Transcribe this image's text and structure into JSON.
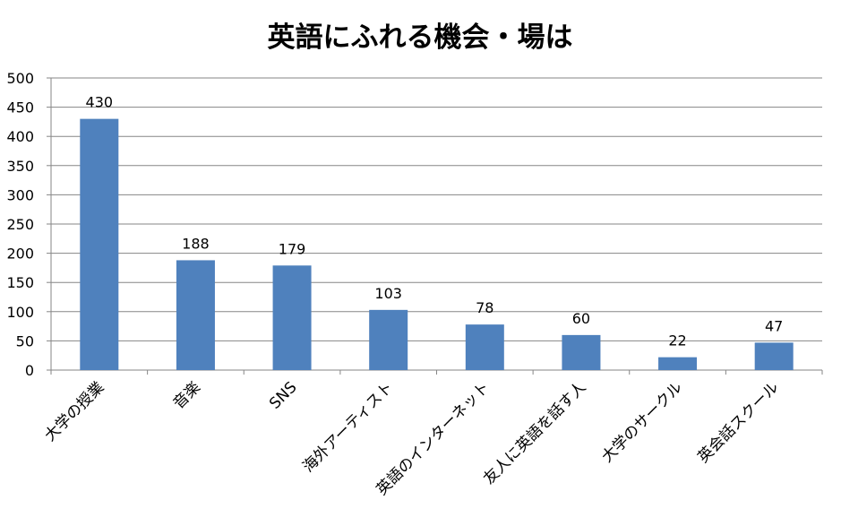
{
  "chart_data": {
    "type": "bar",
    "title": "英語にふれる機会・場は",
    "categories": [
      "大学の授業",
      "音楽",
      "SNS",
      "海外アーティスト",
      "英語のインターネット",
      "友人に英語を話す人",
      "大学のサークル",
      "英会話スクール"
    ],
    "values": [
      430,
      188,
      179,
      103,
      78,
      60,
      22,
      47
    ],
    "ylim": [
      0,
      500
    ],
    "yticks": [
      0,
      50,
      100,
      150,
      200,
      250,
      300,
      350,
      400,
      450,
      500
    ],
    "grid": true,
    "legend": "none",
    "bar_color": "#4f81bd",
    "grid_color": "#868686"
  }
}
